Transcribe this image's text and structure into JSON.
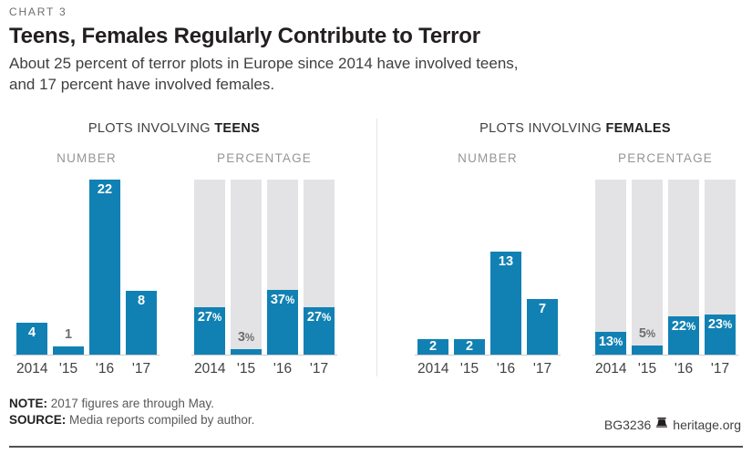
{
  "header": {
    "kicker": "CHART 3",
    "title": "Teens, Females Regularly Contribute to Terror",
    "subtitle_line1": "About 25 percent of terror plots in Europe since 2014 have involved teens,",
    "subtitle_line2": "and 17 percent have involved females."
  },
  "chart_data": [
    {
      "type": "bar",
      "title_regular": "PLOTS INVOLVING ",
      "title_bold": "TEENS",
      "categories": [
        "2014",
        "'15",
        "'16",
        "'17"
      ],
      "panels": [
        {
          "label": "NUMBER",
          "values": [
            4,
            1,
            22,
            8
          ],
          "value_labels": [
            "4",
            "1",
            "22",
            "8"
          ],
          "ymax": 22,
          "background_track": false
        },
        {
          "label": "PERCENTAGE",
          "values": [
            27,
            3,
            37,
            27
          ],
          "value_labels": [
            "27%",
            "3%",
            "37%",
            "27%"
          ],
          "ymax": 100,
          "background_track": true
        }
      ]
    },
    {
      "type": "bar",
      "title_regular": "PLOTS INVOLVING ",
      "title_bold": "FEMALES",
      "categories": [
        "2014",
        "'15",
        "'16",
        "'17"
      ],
      "panels": [
        {
          "label": "NUMBER",
          "values": [
            2,
            2,
            13,
            7
          ],
          "value_labels": [
            "2",
            "2",
            "13",
            "7"
          ],
          "ymax": 22,
          "background_track": false
        },
        {
          "label": "PERCENTAGE",
          "values": [
            13,
            5,
            22,
            23
          ],
          "value_labels": [
            "13%",
            "5%",
            "22%",
            "23%"
          ],
          "ymax": 100,
          "background_track": true
        }
      ]
    }
  ],
  "footer": {
    "note_label": "NOTE:",
    "note_text": "2017 figures are through May.",
    "source_label": "SOURCE:",
    "source_text": "Media reports compiled by author.",
    "doc_id": "BG3236",
    "site": "heritage.org",
    "logo_icon": "heritage-liberty-bell"
  },
  "colors": {
    "bar_blue": "#1181b4",
    "bar_track_gray": "#e3e3e5",
    "axis_line": "#cbccce",
    "title_black": "#231f20",
    "muted_gray": "#939598"
  }
}
